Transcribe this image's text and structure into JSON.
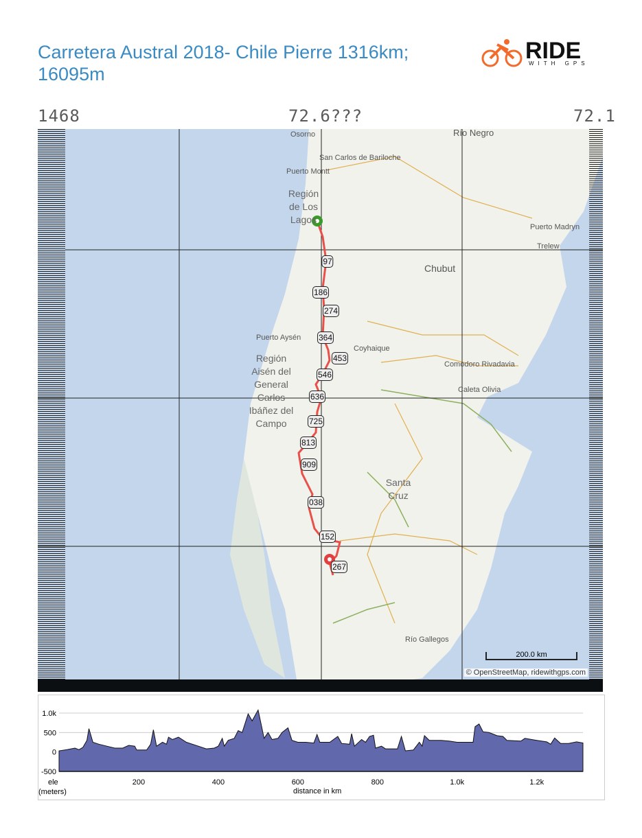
{
  "title": "Carretera Austral 2018- Chile Pierre 1316km; 16095m",
  "logo": {
    "text": "RIDE",
    "sub": "WITH GPS"
  },
  "frame_labels": {
    "top_left": "1468",
    "top_center": "72.6???",
    "top_right": "72.1"
  },
  "map": {
    "places": [
      {
        "name": "Osorno"
      },
      {
        "name": "Río Negro"
      },
      {
        "name": "San Carlos de Bariloche"
      },
      {
        "name": "Puerto Montt"
      },
      {
        "name": "Puerto Madryn"
      },
      {
        "name": "Trelew"
      },
      {
        "name": "Chubut"
      },
      {
        "name": "Puerto Aysén"
      },
      {
        "name": "Coyhaique"
      },
      {
        "name": "Comodoro Rivadavia"
      },
      {
        "name": "Caleta Olivia"
      },
      {
        "name": "Santa Cruz"
      },
      {
        "name": "Río Gallegos"
      }
    ],
    "regions": [
      {
        "name": "Región de Los Lagos"
      },
      {
        "name": "Región Aisén del General Carlos Ibáñez del Campo"
      }
    ],
    "markers": [
      "97",
      "186",
      "274",
      "364",
      "453",
      "546",
      "636",
      "725",
      "813",
      "909",
      "038",
      "152",
      "267"
    ],
    "start_color": "#3a9a2a",
    "end_color": "#e04040",
    "route_color": "#e8504a",
    "scale": "200.0 km",
    "attribution": "© OpenStreetMap, ridewithgps.com"
  },
  "chart_data": {
    "type": "area",
    "xlabel": "distance in km",
    "ylabel": "ele (meters)",
    "ylabel_lines": [
      "ele",
      "(meters)"
    ],
    "xlim": [
      0,
      1316
    ],
    "ylim": [
      -500,
      1100
    ],
    "xticks": [
      "200",
      "400",
      "600",
      "800",
      "1.0k",
      "1.2k"
    ],
    "xtick_values": [
      200,
      400,
      600,
      800,
      1000,
      1200
    ],
    "yticks": [
      "1.0k",
      "500",
      "0",
      "-500"
    ],
    "ytick_values": [
      1000,
      500,
      0,
      -500
    ],
    "grid": true,
    "fill": "#6268ac",
    "x": [
      0,
      20,
      40,
      50,
      60,
      70,
      75,
      85,
      100,
      120,
      140,
      160,
      175,
      190,
      195,
      220,
      230,
      237,
      245,
      260,
      270,
      275,
      285,
      300,
      320,
      350,
      370,
      390,
      400,
      410,
      415,
      425,
      440,
      450,
      460,
      475,
      485,
      500,
      510,
      515,
      525,
      535,
      550,
      560,
      575,
      585,
      600,
      620,
      640,
      648,
      655,
      680,
      700,
      710,
      730,
      735,
      742,
      760,
      770,
      780,
      790,
      795,
      810,
      820,
      850,
      860,
      870,
      890,
      905,
      912,
      918,
      930,
      960,
      980,
      1000,
      1040,
      1045,
      1055,
      1065,
      1080,
      1100,
      1115,
      1125,
      1160,
      1170,
      1200,
      1225,
      1235,
      1245,
      1260,
      1280,
      1300,
      1316
    ],
    "y": [
      30,
      60,
      100,
      60,
      120,
      300,
      600,
      250,
      200,
      150,
      100,
      100,
      170,
      150,
      50,
      50,
      200,
      570,
      150,
      250,
      200,
      380,
      320,
      380,
      250,
      150,
      80,
      100,
      150,
      350,
      150,
      300,
      350,
      550,
      500,
      980,
      800,
      1080,
      600,
      350,
      500,
      320,
      350,
      500,
      620,
      300,
      250,
      250,
      230,
      450,
      250,
      250,
      400,
      220,
      200,
      470,
      150,
      320,
      250,
      400,
      430,
      100,
      150,
      80,
      80,
      400,
      30,
      50,
      250,
      150,
      420,
      300,
      300,
      280,
      250,
      250,
      650,
      720,
      520,
      500,
      420,
      400,
      300,
      280,
      350,
      300,
      260,
      200,
      360,
      220,
      220,
      260,
      230
    ]
  }
}
